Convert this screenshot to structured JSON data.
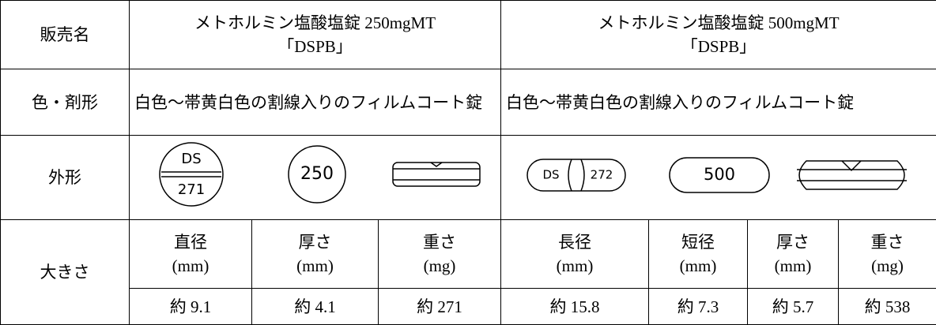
{
  "table": {
    "rows": [
      {
        "label": "販売名",
        "cells": [
          [
            "メトホルミン塩酸塩錠 250mgMT",
            "「DSPB」"
          ],
          [
            "メトホルミン塩酸塩錠 500mgMT",
            "「DSPB」"
          ]
        ]
      },
      {
        "label": "色・剤形",
        "cells": [
          "白色～帯黄白色の割線入りのフィルムコート錠",
          "白色～帯黄白色の割線入りのフィルムコート錠"
        ]
      },
      {
        "label": "外形",
        "imprints": [
          [
            "DS",
            "271",
            "250"
          ],
          [
            "DS",
            "272",
            "500"
          ]
        ]
      },
      {
        "label": "大きさ",
        "headers": [
          [
            "直径",
            "(mm)"
          ],
          [
            "厚さ",
            "(mm)"
          ],
          [
            "重さ",
            "(mg)"
          ],
          [
            "長径",
            "(mm)"
          ],
          [
            "短径",
            "(mm)"
          ],
          [
            "厚さ",
            "(mm)"
          ],
          [
            "重さ",
            "(mg)"
          ]
        ],
        "values": [
          "約 9.1",
          "約 4.1",
          "約 271",
          "約 15.8",
          "約 7.3",
          "約 5.7",
          "約 538"
        ]
      }
    ]
  }
}
